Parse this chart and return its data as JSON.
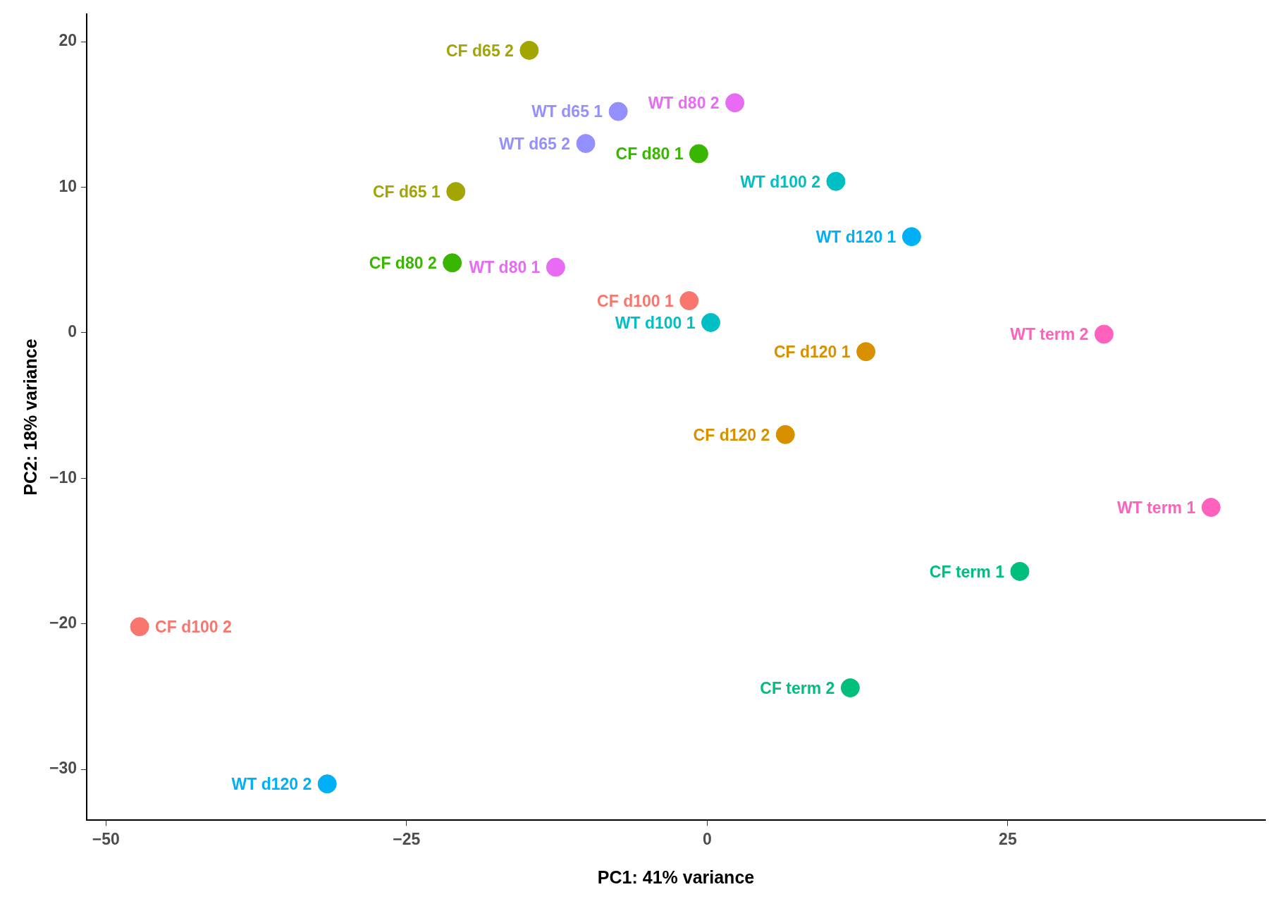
{
  "chart_data": {
    "type": "scatter",
    "xlabel": "PC1: 41% variance",
    "ylabel": "PC2: 18% variance",
    "xlim": [
      -51.6,
      46.4
    ],
    "ylim": [
      -33.5,
      21.9
    ],
    "xticks": [
      {
        "value": -50,
        "label": "−50"
      },
      {
        "value": -25,
        "label": "−25"
      },
      0,
      25
    ],
    "yticks": [
      {
        "value": -30,
        "label": "−30"
      },
      {
        "value": -20,
        "label": "−20"
      },
      {
        "value": -10,
        "label": "−10"
      },
      0,
      10,
      20
    ],
    "grid": false,
    "legend": false,
    "marker": "circle",
    "series": [
      {
        "name": "CF d65 2",
        "color": "#a3a500",
        "x": [
          -14.8
        ],
        "values": [
          19.4
        ]
      },
      {
        "name": "WT d65 1",
        "color": "#9590ff",
        "x": [
          -7.4
        ],
        "values": [
          15.2
        ]
      },
      {
        "name": "WT d80 2",
        "color": "#e76bf3",
        "x": [
          2.3
        ],
        "values": [
          15.8
        ]
      },
      {
        "name": "WT d65 2",
        "color": "#9590ff",
        "x": [
          -10.1
        ],
        "values": [
          13.0
        ]
      },
      {
        "name": "CF d80 1",
        "color": "#39b600",
        "x": [
          -0.7
        ],
        "values": [
          12.3
        ]
      },
      {
        "name": "CF d65 1",
        "color": "#a3a500",
        "x": [
          -20.9
        ],
        "values": [
          9.7
        ]
      },
      {
        "name": "WT d100 2",
        "color": "#00bfc4",
        "x": [
          10.7
        ],
        "values": [
          10.4
        ]
      },
      {
        "name": "WT d120 1",
        "color": "#00b0f6",
        "x": [
          17.0
        ],
        "values": [
          6.6
        ]
      },
      {
        "name": "CF d80 2",
        "color": "#39b600",
        "x": [
          -21.2
        ],
        "values": [
          4.8
        ]
      },
      {
        "name": "WT d80 1",
        "color": "#e76bf3",
        "x": [
          -12.6
        ],
        "values": [
          4.5
        ]
      },
      {
        "name": "CF d100 1",
        "color": "#f8766d",
        "x": [
          -1.5
        ],
        "values": [
          2.2
        ]
      },
      {
        "name": "WT d100 1",
        "color": "#00bfc4",
        "x": [
          0.3
        ],
        "values": [
          0.7
        ]
      },
      {
        "name": "WT term 2",
        "color": "#ff62bc",
        "x": [
          33.0
        ],
        "values": [
          -0.1
        ]
      },
      {
        "name": "CF d120 1",
        "color": "#d89000",
        "x": [
          13.2
        ],
        "values": [
          -1.3
        ]
      },
      {
        "name": "CF d120 2",
        "color": "#d89000",
        "x": [
          6.5
        ],
        "values": [
          -7.0
        ]
      },
      {
        "name": "WT term 1",
        "color": "#ff62bc",
        "x": [
          41.9
        ],
        "values": [
          -12.0
        ]
      },
      {
        "name": "CF term 1",
        "color": "#00bf7d",
        "x": [
          26.0
        ],
        "values": [
          -16.4
        ]
      },
      {
        "name": "CF d100 2",
        "color": "#f8766d",
        "x": [
          -47.2
        ],
        "values": [
          -20.2
        ]
      },
      {
        "name": "CF term 2",
        "color": "#00bf7d",
        "x": [
          11.9
        ],
        "values": [
          -24.4
        ]
      },
      {
        "name": "WT d120 2",
        "color": "#00b0f6",
        "x": [
          -31.6
        ],
        "values": [
          -31.0
        ]
      }
    ]
  }
}
